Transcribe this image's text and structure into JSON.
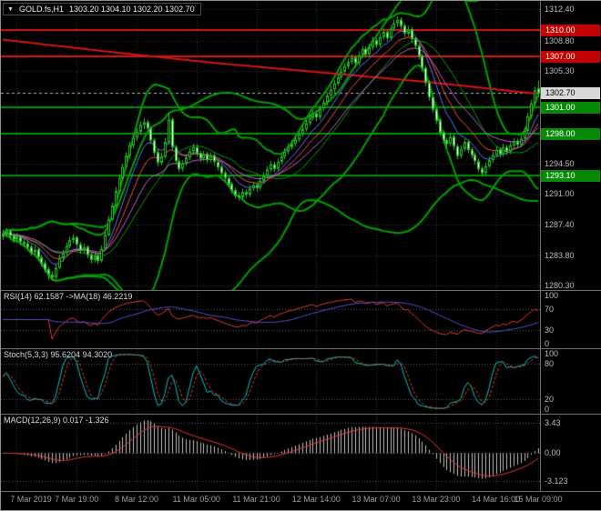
{
  "title": {
    "symbol": "GOLD.fs,H1",
    "ohlc": "1303.20 1304.10 1302.20 1302.70"
  },
  "panels": {
    "rsi": {
      "title": "RSI(14) 62.1587  ->MA(18) 46.2219"
    },
    "stoch": {
      "title": "Stoch(5,3,3) 95.6204 94.3020"
    },
    "macd": {
      "title": "MACD(12,26,9) 0.017 -1.326"
    }
  },
  "chart_data": {
    "type": "candlestick",
    "symbol": "GOLD.fs",
    "timeframe": "H1",
    "last_bar": {
      "open": 1303.2,
      "high": 1304.1,
      "low": 1302.2,
      "close": 1302.7
    },
    "ylim": [
      1279.8,
      1313.4
    ],
    "y_ticks": [
      {
        "value": 1312.4,
        "label": "1312.40"
      },
      {
        "value": 1308.8,
        "label": "1308.80"
      },
      {
        "value": 1305.3,
        "label": "1305.30"
      },
      {
        "value": 1294.5,
        "label": "1294.50"
      },
      {
        "value": 1291.0,
        "label": "1291.00"
      },
      {
        "value": 1287.4,
        "label": "1287.40"
      },
      {
        "value": 1283.8,
        "label": "1283.80"
      },
      {
        "value": 1280.3,
        "label": "1280.30"
      }
    ],
    "price_lines": [
      {
        "value": 1310.0,
        "label": "1310.00",
        "line_color": "#d61414",
        "badge_bg": "#c40000",
        "badge_fg": "#ffffff",
        "style": "solid",
        "type": "resistance"
      },
      {
        "value": 1307.0,
        "label": "1307.00",
        "line_color": "#d61414",
        "badge_bg": "#c40000",
        "badge_fg": "#ffffff",
        "style": "solid",
        "type": "resistance"
      },
      {
        "value": 1302.7,
        "label": "1302.70",
        "line_color": "#bdbdbd",
        "badge_bg": "#d8d8d8",
        "badge_fg": "#000000",
        "style": "dashed",
        "type": "current"
      },
      {
        "value": 1301.0,
        "label": "1301.00",
        "line_color": "#009500",
        "badge_bg": "#068a06",
        "badge_fg": "#ffffff",
        "style": "solid",
        "type": "support"
      },
      {
        "value": 1298.0,
        "label": "1298.00",
        "line_color": "#009500",
        "badge_bg": "#068a06",
        "badge_fg": "#ffffff",
        "style": "solid",
        "type": "support"
      },
      {
        "value": 1293.1,
        "label": "1293.10",
        "line_color": "#009500",
        "badge_bg": "#068a06",
        "badge_fg": "#ffffff",
        "style": "solid",
        "type": "support"
      }
    ],
    "x_labels": [
      {
        "bar": 4,
        "label": "7 Mar 2019"
      },
      {
        "bar": 21,
        "label": "7 Mar 19:00"
      },
      {
        "bar": 38,
        "label": "8 Mar 12:00"
      },
      {
        "bar": 55,
        "label": "11 Mar 05:00"
      },
      {
        "bar": 72,
        "label": "11 Mar 21:00"
      },
      {
        "bar": 89,
        "label": "12 Mar 14:00"
      },
      {
        "bar": 106,
        "label": "13 Mar 07:00"
      },
      {
        "bar": 123,
        "label": "13 Mar 23:00"
      },
      {
        "bar": 140,
        "label": "14 Mar 16:00"
      },
      {
        "bar": 152,
        "label": "15 Mar 09:00"
      }
    ],
    "overlays": {
      "red_ma_anchors": [
        [
          0,
          1308.9
        ],
        [
          30,
          1307.5
        ],
        [
          60,
          1306.2
        ],
        [
          90,
          1305.1
        ],
        [
          120,
          1304.0
        ],
        [
          152,
          1302.6
        ]
      ],
      "bollinger": [
        {
          "period": 20,
          "deviation": 2.0,
          "show_mid": true
        },
        {
          "period": 55,
          "deviation": 2.0,
          "show_mid": false
        }
      ],
      "emas": [
        {
          "period": 8,
          "color": "#5b76f7"
        },
        {
          "period": 13,
          "color": "#f74d4d"
        },
        {
          "period": 21,
          "color": "#c95fd6"
        }
      ]
    },
    "indicators": {
      "rsi": {
        "period": 14,
        "ma_period": 18,
        "value": 62.1587,
        "ma_value": 46.2219,
        "levels": [
          30,
          70
        ],
        "scale": [
          -4,
          104
        ],
        "axis_labels": [
          {
            "v": 100,
            "t": "100"
          },
          {
            "v": 70,
            "t": "70"
          },
          {
            "v": 30,
            "t": "30"
          },
          {
            "v": 0,
            "t": "0"
          }
        ]
      },
      "stoch": {
        "k_period": 5,
        "d_period": 3,
        "slowing": 3,
        "value_k": 95.6204,
        "value_d": 94.302,
        "levels": [
          20,
          80
        ],
        "scale": [
          -4,
          104
        ],
        "axis_labels": [
          {
            "v": 100,
            "t": "100"
          },
          {
            "v": 80,
            "t": "80"
          },
          {
            "v": 20,
            "t": "20"
          },
          {
            "v": 0,
            "t": "0"
          }
        ]
      },
      "macd": {
        "fast": 12,
        "slow": 26,
        "signal": 9,
        "value": 0.017,
        "signal_value": -1.326,
        "scale": [
          -4.3,
          4.4
        ],
        "axis_labels": [
          {
            "v": 3.43,
            "t": "3.43"
          },
          {
            "v": 0,
            "t": "0.00"
          },
          {
            "v": -3.123,
            "t": "-3.123"
          }
        ]
      }
    },
    "colors": {
      "background": "#000000",
      "grid": "#343434",
      "level_dots": "#555555",
      "candle_stroke": "#1fc41f",
      "bull_fill": "#000000",
      "bear_fill": "#ffffff",
      "bands": "#00a000",
      "ma_red": "#d61414",
      "rsi_line": "#e03838",
      "rsi_ma": "#4f4fd0",
      "stoch_k": "#00c4c4",
      "stoch_d": "#e03838",
      "macd_hist": "#c0c0c0",
      "macd_signal": "#e03838",
      "axis_text": "#bdbdbd",
      "time_text": "#9f9f9f"
    },
    "candles": [
      [
        1286.0,
        1286.8,
        1285.6,
        1286.3
      ],
      [
        1286.3,
        1287.0,
        1285.9,
        1286.6
      ],
      [
        1286.6,
        1286.9,
        1285.7,
        1286.1
      ],
      [
        1286.1,
        1286.4,
        1285.3,
        1285.7
      ],
      [
        1285.7,
        1286.4,
        1285.3,
        1286.0
      ],
      [
        1286.0,
        1286.2,
        1285.0,
        1285.4
      ],
      [
        1285.4,
        1285.8,
        1284.8,
        1285.2
      ],
      [
        1285.2,
        1285.5,
        1284.4,
        1284.8
      ],
      [
        1284.8,
        1285.1,
        1283.8,
        1284.2
      ],
      [
        1284.2,
        1284.9,
        1283.9,
        1284.5
      ],
      [
        1284.5,
        1284.7,
        1283.2,
        1283.6
      ],
      [
        1283.6,
        1283.9,
        1282.5,
        1282.9
      ],
      [
        1282.9,
        1283.3,
        1281.8,
        1282.2
      ],
      [
        1282.2,
        1282.5,
        1281.0,
        1281.6
      ],
      [
        1281.6,
        1282.0,
        1280.9,
        1281.3
      ],
      [
        1281.3,
        1282.8,
        1281.1,
        1282.4
      ],
      [
        1282.4,
        1283.9,
        1282.2,
        1283.5
      ],
      [
        1283.5,
        1284.5,
        1283.1,
        1284.1
      ],
      [
        1284.1,
        1285.3,
        1283.8,
        1284.9
      ],
      [
        1284.9,
        1286.0,
        1284.6,
        1285.6
      ],
      [
        1285.6,
        1286.3,
        1285.2,
        1285.9
      ],
      [
        1285.9,
        1286.1,
        1284.7,
        1285.1
      ],
      [
        1285.1,
        1285.4,
        1284.0,
        1284.4
      ],
      [
        1284.4,
        1285.2,
        1284.1,
        1284.8
      ],
      [
        1284.8,
        1285.0,
        1283.5,
        1283.9
      ],
      [
        1283.9,
        1284.2,
        1282.9,
        1283.3
      ],
      [
        1283.3,
        1284.2,
        1283.0,
        1283.8
      ],
      [
        1283.8,
        1284.0,
        1282.8,
        1283.2
      ],
      [
        1283.2,
        1285.0,
        1283.0,
        1284.6
      ],
      [
        1284.6,
        1286.6,
        1284.4,
        1286.2
      ],
      [
        1286.2,
        1288.4,
        1286.0,
        1288.0
      ],
      [
        1288.0,
        1290.0,
        1287.8,
        1289.6
      ],
      [
        1289.6,
        1291.8,
        1289.4,
        1291.3
      ],
      [
        1291.3,
        1293.2,
        1291.0,
        1292.8
      ],
      [
        1292.8,
        1294.5,
        1292.5,
        1294.1
      ],
      [
        1294.1,
        1295.8,
        1293.8,
        1295.4
      ],
      [
        1295.4,
        1297.0,
        1295.1,
        1296.6
      ],
      [
        1296.6,
        1297.9,
        1296.3,
        1297.5
      ],
      [
        1297.5,
        1298.6,
        1297.1,
        1298.2
      ],
      [
        1298.2,
        1299.4,
        1297.8,
        1299.0
      ],
      [
        1299.0,
        1299.8,
        1298.5,
        1299.3
      ],
      [
        1299.3,
        1299.6,
        1298.2,
        1298.6
      ],
      [
        1298.6,
        1298.9,
        1296.8,
        1297.2
      ],
      [
        1297.2,
        1297.5,
        1295.4,
        1295.8
      ],
      [
        1295.8,
        1296.2,
        1294.2,
        1294.6
      ],
      [
        1294.6,
        1295.8,
        1294.3,
        1295.3
      ],
      [
        1295.3,
        1297.5,
        1295.0,
        1297.0
      ],
      [
        1297.0,
        1300.4,
        1296.7,
        1299.6
      ],
      [
        1299.6,
        1299.9,
        1296.0,
        1296.4
      ],
      [
        1296.4,
        1296.7,
        1294.4,
        1294.8
      ],
      [
        1294.8,
        1295.2,
        1293.5,
        1293.9
      ],
      [
        1293.9,
        1294.9,
        1293.6,
        1294.5
      ],
      [
        1294.5,
        1295.6,
        1294.2,
        1295.2
      ],
      [
        1295.2,
        1296.3,
        1294.9,
        1295.9
      ],
      [
        1295.9,
        1296.8,
        1295.5,
        1296.4
      ],
      [
        1296.4,
        1296.7,
        1295.3,
        1295.7
      ],
      [
        1295.7,
        1296.0,
        1294.7,
        1295.1
      ],
      [
        1295.1,
        1296.0,
        1294.8,
        1295.6
      ],
      [
        1295.6,
        1295.9,
        1294.5,
        1294.9
      ],
      [
        1294.9,
        1295.8,
        1294.6,
        1295.4
      ],
      [
        1295.4,
        1295.7,
        1294.3,
        1294.7
      ],
      [
        1294.7,
        1295.0,
        1293.7,
        1294.1
      ],
      [
        1294.1,
        1294.4,
        1293.0,
        1293.4
      ],
      [
        1293.4,
        1293.7,
        1292.4,
        1292.8
      ],
      [
        1292.8,
        1293.1,
        1291.7,
        1292.1
      ],
      [
        1292.1,
        1292.4,
        1291.0,
        1291.4
      ],
      [
        1291.4,
        1291.7,
        1290.4,
        1290.8
      ],
      [
        1290.8,
        1291.2,
        1290.2,
        1290.6
      ],
      [
        1290.6,
        1291.6,
        1290.3,
        1291.2
      ],
      [
        1291.2,
        1291.5,
        1290.5,
        1290.9
      ],
      [
        1290.9,
        1292.0,
        1290.6,
        1291.6
      ],
      [
        1291.6,
        1292.4,
        1291.3,
        1292.0
      ],
      [
        1292.0,
        1292.3,
        1291.2,
        1291.7
      ],
      [
        1291.7,
        1292.9,
        1291.4,
        1292.5
      ],
      [
        1292.5,
        1293.5,
        1292.2,
        1293.1
      ],
      [
        1293.1,
        1294.2,
        1292.8,
        1293.8
      ],
      [
        1293.8,
        1294.8,
        1293.5,
        1294.4
      ],
      [
        1294.4,
        1294.7,
        1293.5,
        1293.9
      ],
      [
        1293.9,
        1295.1,
        1293.6,
        1294.7
      ],
      [
        1294.7,
        1295.7,
        1294.4,
        1295.3
      ],
      [
        1295.3,
        1296.3,
        1295.0,
        1295.9
      ],
      [
        1295.9,
        1296.8,
        1295.6,
        1296.4
      ],
      [
        1296.4,
        1297.2,
        1296.1,
        1296.8
      ],
      [
        1296.8,
        1297.7,
        1296.5,
        1297.3
      ],
      [
        1297.3,
        1298.3,
        1297.0,
        1297.9
      ],
      [
        1297.9,
        1298.9,
        1297.6,
        1298.5
      ],
      [
        1298.5,
        1299.6,
        1298.2,
        1299.2
      ],
      [
        1299.2,
        1300.2,
        1298.9,
        1299.8
      ],
      [
        1299.8,
        1300.7,
        1299.5,
        1300.3
      ],
      [
        1300.3,
        1300.6,
        1299.4,
        1299.9
      ],
      [
        1299.9,
        1301.3,
        1299.6,
        1300.9
      ],
      [
        1300.9,
        1302.0,
        1300.6,
        1301.6
      ],
      [
        1301.6,
        1302.8,
        1301.3,
        1302.4
      ],
      [
        1302.4,
        1303.5,
        1302.1,
        1303.1
      ],
      [
        1303.1,
        1304.2,
        1302.8,
        1303.8
      ],
      [
        1303.8,
        1304.9,
        1303.5,
        1304.5
      ],
      [
        1304.5,
        1305.6,
        1304.2,
        1305.2
      ],
      [
        1305.2,
        1306.2,
        1304.9,
        1305.8
      ],
      [
        1305.8,
        1306.7,
        1305.5,
        1306.3
      ],
      [
        1306.3,
        1307.2,
        1306.0,
        1306.8
      ],
      [
        1306.8,
        1307.1,
        1305.7,
        1306.2
      ],
      [
        1306.2,
        1307.5,
        1305.9,
        1307.1
      ],
      [
        1307.1,
        1308.2,
        1306.8,
        1307.8
      ],
      [
        1307.8,
        1308.1,
        1306.8,
        1307.2
      ],
      [
        1307.2,
        1308.4,
        1306.9,
        1308.0
      ],
      [
        1308.0,
        1309.2,
        1307.7,
        1308.8
      ],
      [
        1308.8,
        1309.1,
        1307.9,
        1308.3
      ],
      [
        1308.3,
        1309.6,
        1308.0,
        1309.2
      ],
      [
        1309.2,
        1310.2,
        1308.9,
        1309.8
      ],
      [
        1309.8,
        1310.1,
        1308.7,
        1309.1
      ],
      [
        1309.1,
        1310.6,
        1308.8,
        1310.2
      ],
      [
        1310.2,
        1311.2,
        1309.9,
        1310.8
      ],
      [
        1310.8,
        1311.6,
        1310.4,
        1311.2
      ],
      [
        1311.2,
        1311.5,
        1310.1,
        1310.5
      ],
      [
        1310.5,
        1310.8,
        1309.2,
        1309.6
      ],
      [
        1309.6,
        1310.5,
        1309.3,
        1310.1
      ],
      [
        1310.1,
        1310.4,
        1308.6,
        1309.0
      ],
      [
        1309.0,
        1309.3,
        1307.8,
        1308.2
      ],
      [
        1308.2,
        1308.5,
        1306.6,
        1307.0
      ],
      [
        1307.0,
        1307.3,
        1305.2,
        1305.6
      ],
      [
        1305.6,
        1305.9,
        1303.5,
        1303.9
      ],
      [
        1303.9,
        1304.2,
        1301.8,
        1302.2
      ],
      [
        1302.2,
        1302.5,
        1300.4,
        1300.8
      ],
      [
        1300.8,
        1301.1,
        1299.1,
        1299.5
      ],
      [
        1299.5,
        1299.8,
        1297.7,
        1298.1
      ],
      [
        1298.1,
        1298.4,
        1296.8,
        1297.2
      ],
      [
        1297.2,
        1297.5,
        1296.3,
        1296.8
      ],
      [
        1296.8,
        1298.0,
        1296.5,
        1297.6
      ],
      [
        1297.6,
        1297.9,
        1296.1,
        1296.5
      ],
      [
        1296.5,
        1296.8,
        1295.0,
        1295.4
      ],
      [
        1295.4,
        1296.6,
        1295.1,
        1296.2
      ],
      [
        1296.2,
        1297.4,
        1295.9,
        1297.0
      ],
      [
        1297.0,
        1297.3,
        1295.7,
        1296.1
      ],
      [
        1296.1,
        1296.4,
        1295.1,
        1295.5
      ],
      [
        1295.5,
        1295.8,
        1294.4,
        1294.8
      ],
      [
        1294.8,
        1295.1,
        1293.5,
        1293.9
      ],
      [
        1293.9,
        1294.2,
        1293.0,
        1293.4
      ],
      [
        1293.4,
        1294.6,
        1293.1,
        1294.2
      ],
      [
        1294.2,
        1295.3,
        1293.9,
        1294.9
      ],
      [
        1294.9,
        1295.9,
        1294.6,
        1295.5
      ],
      [
        1295.5,
        1296.5,
        1295.2,
        1296.1
      ],
      [
        1296.1,
        1296.4,
        1295.2,
        1295.6
      ],
      [
        1295.6,
        1296.8,
        1295.3,
        1296.4
      ],
      [
        1296.4,
        1296.7,
        1295.5,
        1295.9
      ],
      [
        1295.9,
        1297.0,
        1295.6,
        1296.6
      ],
      [
        1296.6,
        1297.5,
        1296.3,
        1297.1
      ],
      [
        1297.1,
        1297.4,
        1296.3,
        1296.7
      ],
      [
        1296.7,
        1297.8,
        1296.4,
        1297.4
      ],
      [
        1297.4,
        1298.7,
        1297.1,
        1298.3
      ],
      [
        1298.3,
        1300.4,
        1298.0,
        1300.0
      ],
      [
        1300.0,
        1301.9,
        1299.7,
        1301.5
      ],
      [
        1301.5,
        1303.4,
        1301.2,
        1303.0
      ],
      [
        1303.2,
        1304.1,
        1302.2,
        1302.7
      ]
    ]
  }
}
